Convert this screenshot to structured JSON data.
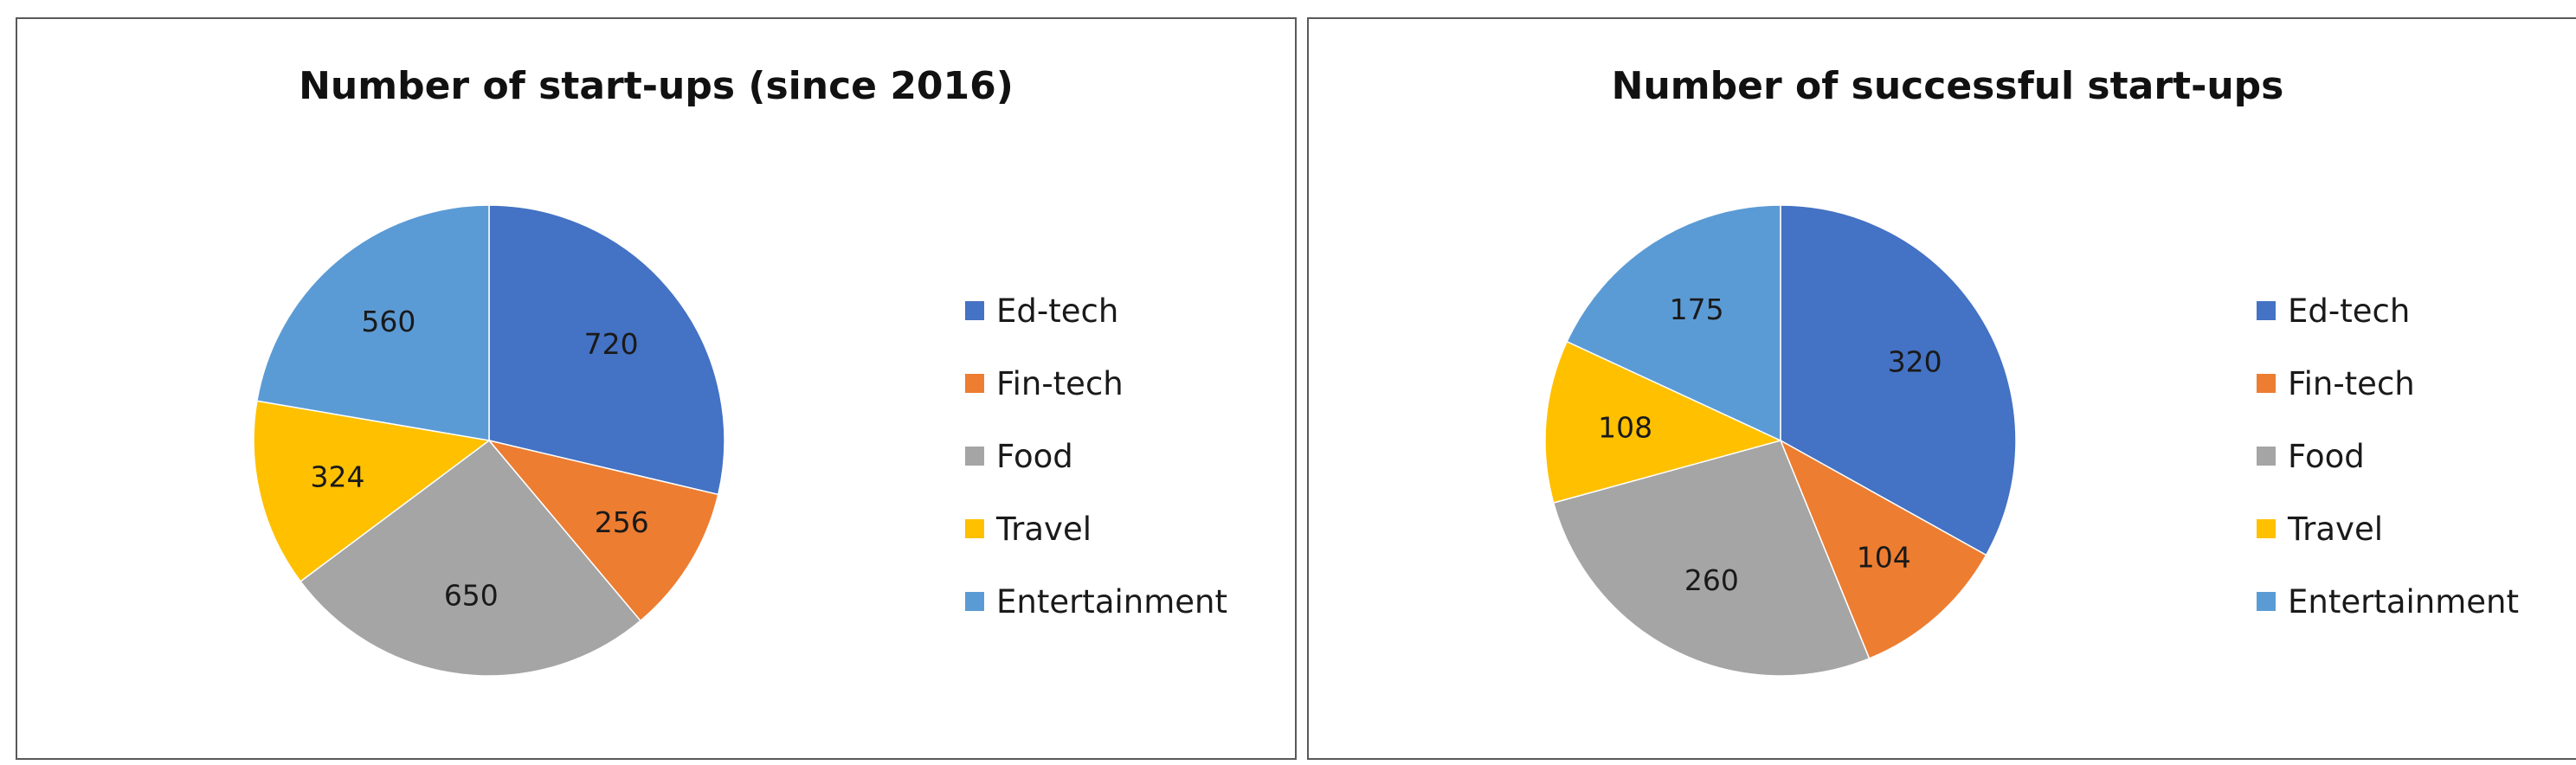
{
  "colors": {
    "Ed-tech": "#4472C4",
    "Fin-tech": "#ED7D31",
    "Food": "#A5A5A5",
    "Travel": "#FFC000",
    "Entertainment": "#5B9BD5"
  },
  "chart_data": [
    {
      "type": "pie",
      "title": "Number of start-ups (since 2016)",
      "categories": [
        "Ed-tech",
        "Fin-tech",
        "Food",
        "Travel",
        "Entertainment"
      ],
      "values": [
        720,
        256,
        650,
        324,
        560
      ],
      "data_labels": [
        "720",
        "256",
        "650",
        "324",
        "560"
      ],
      "legend": "right"
    },
    {
      "type": "pie",
      "title": "Number of successful start-ups",
      "categories": [
        "Ed-tech",
        "Fin-tech",
        "Food",
        "Travel",
        "Entertainment"
      ],
      "values": [
        320,
        104,
        260,
        108,
        175
      ],
      "data_labels": [
        "320",
        "104",
        "260",
        "108",
        "175"
      ],
      "legend": "right"
    }
  ]
}
